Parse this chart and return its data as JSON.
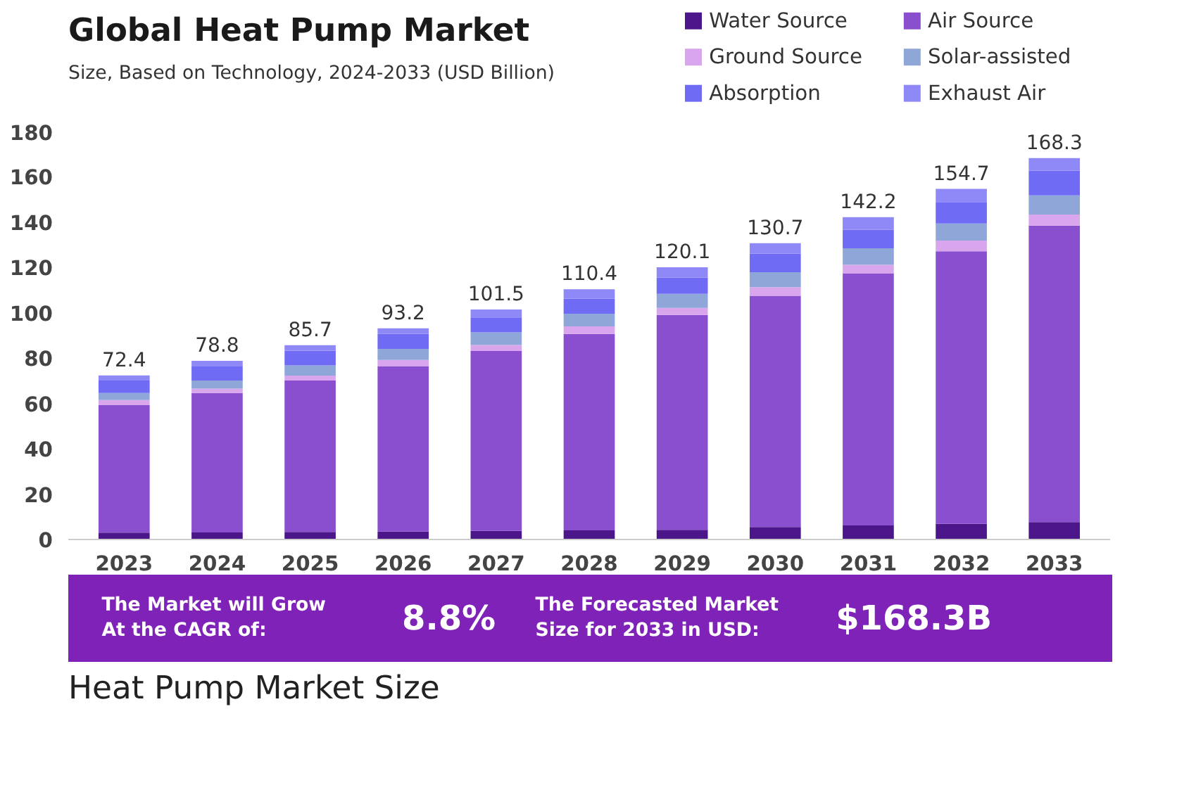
{
  "chart_data": {
    "type": "bar",
    "stacked": true,
    "title": "Global Heat Pump Market",
    "subtitle": "Size, Based on Technology, 2024-2033 (USD Billion)",
    "categories": [
      "2023",
      "2024",
      "2025",
      "2026",
      "2027",
      "2028",
      "2029",
      "2030",
      "2031",
      "2032",
      "2033"
    ],
    "series": [
      {
        "name": "Water Source",
        "color": "#4b1689",
        "values": [
          3.0,
          3.1,
          3.3,
          3.5,
          3.8,
          4.0,
          4.3,
          5.5,
          6.2,
          6.9,
          7.7
        ]
      },
      {
        "name": "Air Source",
        "color": "#8a4fcf",
        "values": [
          56.3,
          61.5,
          66.8,
          73.0,
          79.4,
          86.7,
          94.8,
          102.0,
          111.3,
          120.3,
          130.8
        ]
      },
      {
        "name": "Ground Source",
        "color": "#d9a6ee",
        "values": [
          2.2,
          2.0,
          2.2,
          2.7,
          2.6,
          3.3,
          3.1,
          3.8,
          3.7,
          4.7,
          4.9
        ]
      },
      {
        "name": "Solar-assisted",
        "color": "#8ea6d8",
        "values": [
          3.1,
          3.5,
          4.5,
          4.9,
          5.6,
          5.6,
          6.2,
          6.6,
          7.3,
          7.5,
          8.4
        ]
      },
      {
        "name": "Absorption",
        "color": "#6f6bf5",
        "values": [
          5.5,
          6.5,
          6.5,
          6.6,
          6.6,
          6.6,
          7.1,
          8.2,
          8.2,
          9.5,
          11.0
        ]
      },
      {
        "name": "Exhaust Air",
        "color": "#8f88f7",
        "values": [
          2.3,
          2.2,
          2.4,
          2.5,
          3.5,
          4.2,
          4.6,
          4.6,
          5.5,
          5.8,
          5.5
        ]
      }
    ],
    "totals": [
      "72.4",
      "78.8",
      "85.7",
      "93.2",
      "101.5",
      "110.4",
      "120.1",
      "130.7",
      "142.2",
      "154.7",
      "168.3"
    ],
    "ylim": [
      0,
      180
    ],
    "yticks": [
      0,
      20,
      40,
      60,
      80,
      100,
      120,
      140,
      160,
      180
    ],
    "grid": false,
    "legend": "top right",
    "annotations": [
      "The Market will Grow\nAt the CAGR of:",
      "8.8%",
      "The Forecasted Market\nSize for 2033 in USD:",
      "$168.3B",
      "Heat Pump Market Size"
    ]
  }
}
